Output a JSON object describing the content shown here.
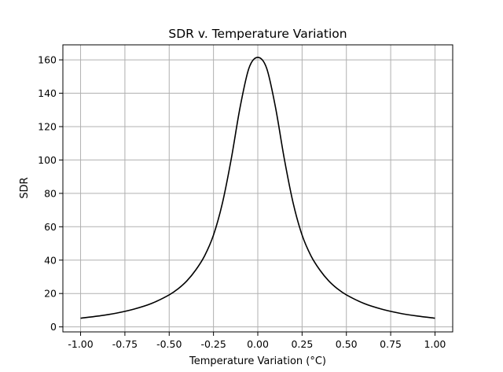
{
  "chart_data": {
    "type": "line",
    "title": "SDR v. Temperature Variation",
    "xlabel": "Temperature Variation (°C)",
    "ylabel": "SDR",
    "xlim": [
      -1.1,
      1.1
    ],
    "ylim": [
      -3,
      169
    ],
    "grid": true,
    "x_ticks": [
      "-1.00",
      "-0.75",
      "-0.50",
      "-0.25",
      "0.00",
      "0.25",
      "0.50",
      "0.75",
      "1.00"
    ],
    "x_tick_values": [
      -1.0,
      -0.75,
      -0.5,
      -0.25,
      0.0,
      0.25,
      0.5,
      0.75,
      1.0
    ],
    "y_ticks": [
      "0",
      "20",
      "40",
      "60",
      "80",
      "100",
      "120",
      "140",
      "160"
    ],
    "y_tick_values": [
      0,
      20,
      40,
      60,
      80,
      100,
      120,
      140,
      160
    ],
    "series": [
      {
        "color": "#000000",
        "x": [
          -1.0,
          -0.9,
          -0.8,
          -0.7,
          -0.6,
          -0.5,
          -0.45,
          -0.4,
          -0.35,
          -0.3,
          -0.25,
          -0.2,
          -0.15,
          -0.1,
          -0.05,
          0.0,
          0.05,
          0.1,
          0.15,
          0.2,
          0.25,
          0.3,
          0.35,
          0.4,
          0.45,
          0.5,
          0.6,
          0.7,
          0.8,
          0.9,
          1.0
        ],
        "y": [
          5.2,
          6.5,
          8.2,
          10.6,
          14.0,
          19.2,
          22.8,
          27.6,
          34.1,
          42.6,
          55.0,
          74.0,
          100.5,
          131.5,
          155.0,
          161.5,
          155.0,
          131.5,
          100.5,
          74.0,
          55.0,
          42.6,
          34.1,
          27.6,
          22.8,
          19.2,
          14.0,
          10.6,
          8.2,
          6.5,
          5.2
        ]
      }
    ]
  }
}
